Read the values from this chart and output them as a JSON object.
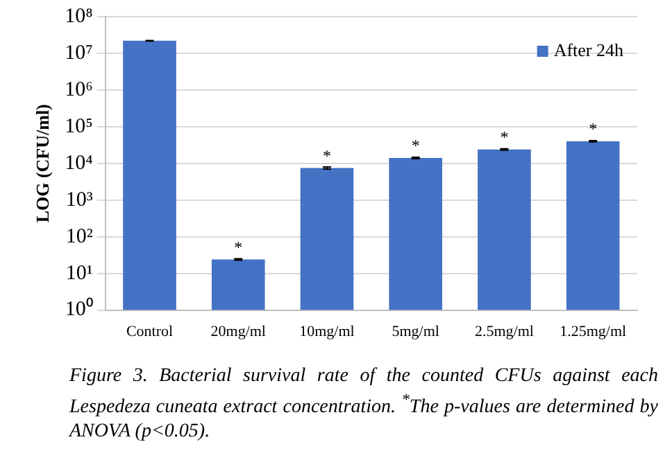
{
  "chart_data": {
    "type": "bar",
    "ylabel": "LOG (CFU/ml)",
    "categories": [
      "Control",
      "20mg/ml",
      "10mg/ml",
      "5mg/ml",
      "2.5mg/ml",
      "1.25mg/ml"
    ],
    "series": [
      {
        "name": "After 24h",
        "color": "#4472c4",
        "values": [
          22000000,
          24,
          7500,
          14000,
          24000,
          40000
        ],
        "errors": [
          400000,
          1,
          500,
          600,
          1000,
          1500
        ]
      }
    ],
    "log": "y",
    "ylim": [
      1,
      100000000
    ],
    "yticks": [
      {
        "value": 1,
        "label": "10⁰"
      },
      {
        "value": 10,
        "label": "10¹"
      },
      {
        "value": 100,
        "label": "10²"
      },
      {
        "value": 1000,
        "label": "10³"
      },
      {
        "value": 10000,
        "label": "10⁴"
      },
      {
        "value": 100000,
        "label": "10⁵"
      },
      {
        "value": 1000000,
        "label": "10⁶"
      },
      {
        "value": 10000000,
        "label": "10⁷"
      },
      {
        "value": 100000000,
        "label": "10⁸"
      }
    ],
    "grid": "y",
    "legend": "top right",
    "annotations": [
      {
        "text": "*",
        "x": "20mg/ml",
        "y": 24
      },
      {
        "text": "*",
        "x": "10mg/ml",
        "y": 7500
      },
      {
        "text": "*",
        "x": "5mg/ml",
        "y": 14000
      },
      {
        "text": "*",
        "x": "2.5mg/ml",
        "y": 24000
      },
      {
        "text": "*",
        "x": "1.25mg/ml",
        "y": 40000
      },
      "Figure 3. Bacterial survival rate of the counted CFUs against each Lespedeza cuneata extract concentration. $^{*}$The p-values are determined by ANOVA (p<0.05)."
    ]
  }
}
